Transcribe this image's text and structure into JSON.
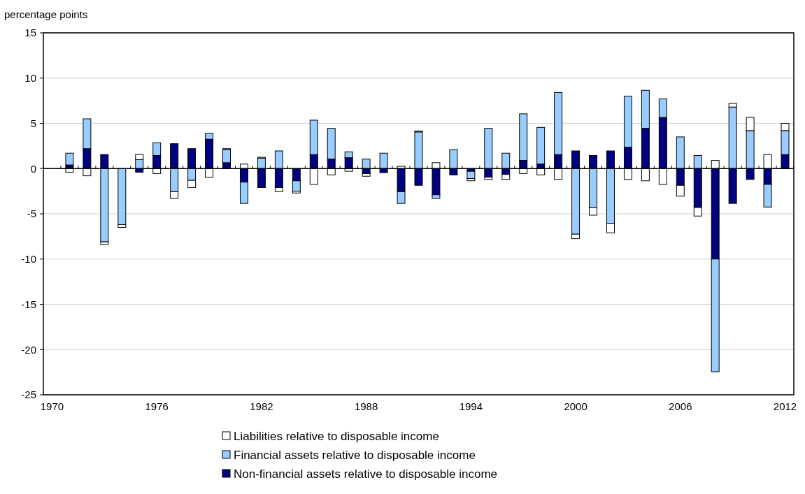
{
  "chart_data": {
    "type": "bar",
    "stacked": true,
    "ylabel": "percentage points",
    "categories": [
      "1970",
      null,
      null,
      null,
      null,
      null,
      "1976",
      null,
      null,
      null,
      null,
      null,
      "1982",
      null,
      null,
      null,
      null,
      null,
      "1988",
      null,
      null,
      null,
      null,
      null,
      "1994",
      null,
      null,
      null,
      null,
      null,
      "2000",
      null,
      null,
      null,
      null,
      null,
      "2006",
      null,
      null,
      null,
      null,
      null,
      "2012"
    ],
    "series": [
      {
        "name": "Non-financial assets relative to disposable income",
        "color": "#000080",
        "values": [
          null,
          0.4,
          2.2,
          1.55,
          null,
          -0.4,
          1.45,
          2.75,
          2.2,
          3.25,
          0.65,
          -1.5,
          -2.1,
          -2.1,
          -1.35,
          1.55,
          1.05,
          1.2,
          -0.55,
          -0.45,
          -2.55,
          -1.85,
          -2.9,
          -0.7,
          -0.3,
          -0.95,
          -0.65,
          0.9,
          0.5,
          1.55,
          1.95,
          1.45,
          1.95,
          2.35,
          4.45,
          5.65,
          -1.85,
          -4.3,
          -10,
          -3.85,
          -1.2,
          -1.75,
          1.55
        ]
      },
      {
        "name": "Financial assets relative to disposable income",
        "color": "#99ccff",
        "values": [
          null,
          1.3,
          3.3,
          -8.1,
          -6.2,
          1.0,
          1.4,
          -2.55,
          -1.3,
          0.65,
          1.45,
          -2.35,
          1.15,
          1.95,
          -1.15,
          3.8,
          3.4,
          0.65,
          1.05,
          1.7,
          -1.3,
          4.05,
          -0.4,
          2.1,
          -0.8,
          4.45,
          1.7,
          5.15,
          4.05,
          6.85,
          -7.25,
          -4.3,
          -6.05,
          5.65,
          4.2,
          2.05,
          3.5,
          1.45,
          -12.45,
          6.8,
          4.2,
          -2.5,
          2.65
        ]
      },
      {
        "name": "Liabilities relative to disposable income",
        "color": "#ffffff",
        "values": [
          null,
          -0.4,
          -0.8,
          -0.3,
          -0.3,
          0.55,
          -0.55,
          -0.75,
          -0.8,
          -0.95,
          0.1,
          0.5,
          0.1,
          -0.45,
          -0.2,
          -1.75,
          -0.7,
          -0.3,
          -0.3,
          null,
          0.25,
          0.1,
          0.65,
          null,
          -0.25,
          -0.25,
          -0.55,
          -0.55,
          -0.7,
          -1.2,
          -0.5,
          -0.85,
          -1.05,
          -1.2,
          -1.35,
          -1.75,
          -1.2,
          -0.95,
          0.9,
          0.4,
          1.45,
          1.55,
          0.8
        ]
      }
    ],
    "ylim": [
      -25,
      15
    ],
    "yticks": [
      -25,
      -20,
      -15,
      -10,
      -5,
      0,
      5,
      10,
      15
    ],
    "grid": "y",
    "legend": "bottom"
  }
}
